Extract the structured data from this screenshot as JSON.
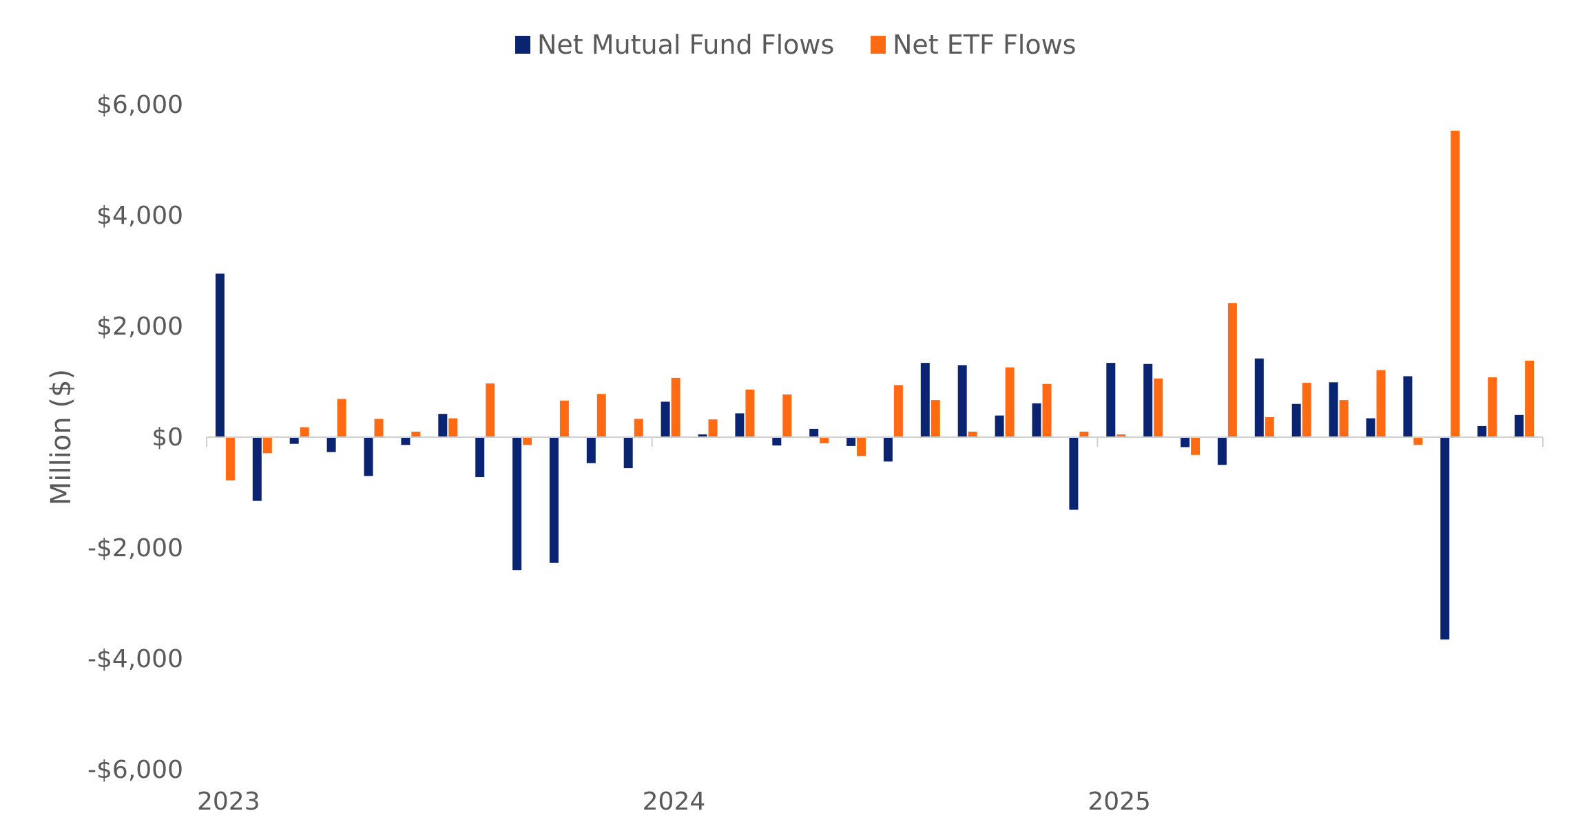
{
  "chart_data": {
    "type": "bar",
    "ylabel": "Million ($)",
    "ylim": [
      -6000,
      6000
    ],
    "yticks": [
      6000,
      4000,
      2000,
      0,
      -2000,
      -4000,
      -6000
    ],
    "ytick_labels": [
      "$6,000",
      "$4,000",
      "$2,000",
      "$0",
      "-$2,000",
      "-$4,000",
      "-$6,000"
    ],
    "year_labels": [
      {
        "label": "2023",
        "index": 0
      },
      {
        "label": "2024",
        "index": 12
      },
      {
        "label": "2025",
        "index": 24
      }
    ],
    "grid": false,
    "legend_position": "top-center",
    "series": [
      {
        "name": "Net Mutual Fund Flows",
        "color": "#0a2472",
        "values": [
          2950,
          -1150,
          -120,
          -270,
          -700,
          -140,
          420,
          -720,
          -2400,
          -2270,
          -470,
          -560,
          640,
          50,
          430,
          -150,
          150,
          -160,
          -440,
          1340,
          1300,
          390,
          610,
          -1310,
          1340,
          1320,
          -180,
          -500,
          1420,
          600,
          990,
          340,
          1100,
          -3650,
          200,
          400
        ]
      },
      {
        "name": "Net ETF Flows",
        "color": "#ff6a13",
        "values": [
          -780,
          -290,
          180,
          690,
          330,
          100,
          340,
          970,
          -140,
          660,
          780,
          330,
          1070,
          320,
          860,
          770,
          -110,
          -340,
          940,
          670,
          100,
          1260,
          960,
          100,
          50,
          1060,
          -320,
          2420,
          360,
          980,
          670,
          1210,
          -140,
          5530,
          1080,
          1380
        ]
      }
    ]
  }
}
